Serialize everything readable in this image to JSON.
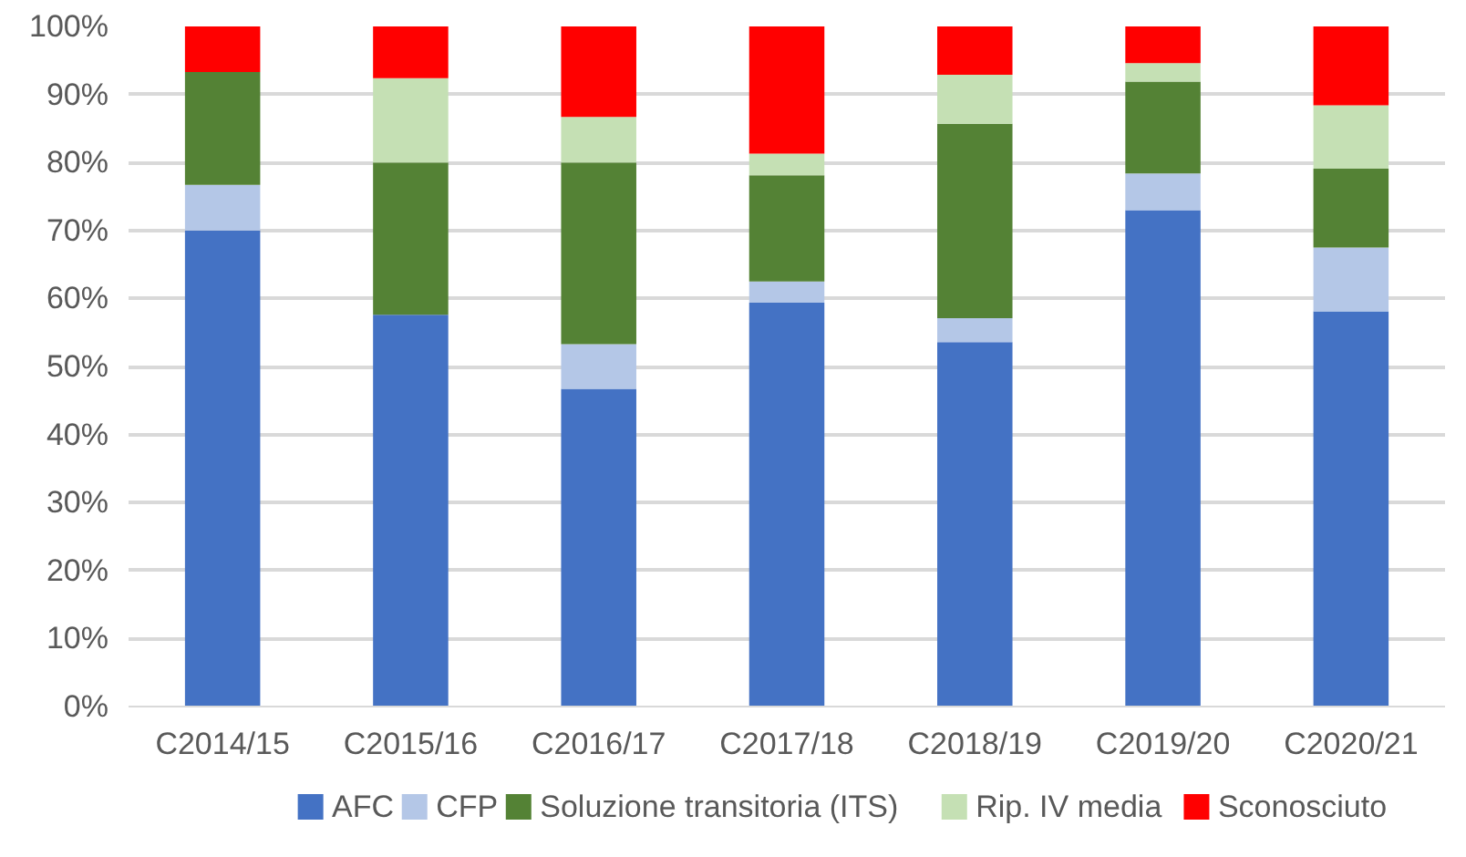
{
  "chart_data": {
    "type": "bar",
    "stacked": true,
    "categories": [
      "C2014/15",
      "C2015/16",
      "C2016/17",
      "C2017/18",
      "C2018/19",
      "C2019/20",
      "C2020/21"
    ],
    "series": [
      {
        "name": "AFC",
        "color": "#4472c4",
        "values": [
          70,
          57.6,
          46.7,
          59.4,
          53.6,
          73,
          58.1
        ]
      },
      {
        "name": "CFP",
        "color": "#b4c7e7",
        "values": [
          6.7,
          0,
          6.6,
          3.1,
          3.5,
          5.4,
          9.4
        ]
      },
      {
        "name": "Soluzione transitoria (ITS)",
        "color": "#548235",
        "values": [
          16.6,
          22.4,
          26.7,
          15.6,
          28.6,
          13.5,
          11.6
        ]
      },
      {
        "name": "Rip. IV media",
        "color": "#c5e0b4",
        "values": [
          0,
          12.4,
          6.7,
          3.2,
          7.2,
          2.7,
          9.3
        ]
      },
      {
        "name": "Sconosciuto",
        "color": "#ff0000",
        "values": [
          6.7,
          7.6,
          13.3,
          18.7,
          7.1,
          5.4,
          11.6
        ]
      }
    ],
    "ylim": [
      0,
      100
    ],
    "yticks": [
      {
        "value": 0,
        "label": "0%"
      },
      {
        "value": 10,
        "label": "10%"
      },
      {
        "value": 20,
        "label": "20%"
      },
      {
        "value": 30,
        "label": "30%"
      },
      {
        "value": 40,
        "label": "40%"
      },
      {
        "value": 50,
        "label": "50%"
      },
      {
        "value": 60,
        "label": "60%"
      },
      {
        "value": 70,
        "label": "70%"
      },
      {
        "value": 80,
        "label": "80%"
      },
      {
        "value": 90,
        "label": "90%"
      },
      {
        "value": 100,
        "label": "100%"
      }
    ],
    "grid": "y",
    "legend": "bottom"
  }
}
